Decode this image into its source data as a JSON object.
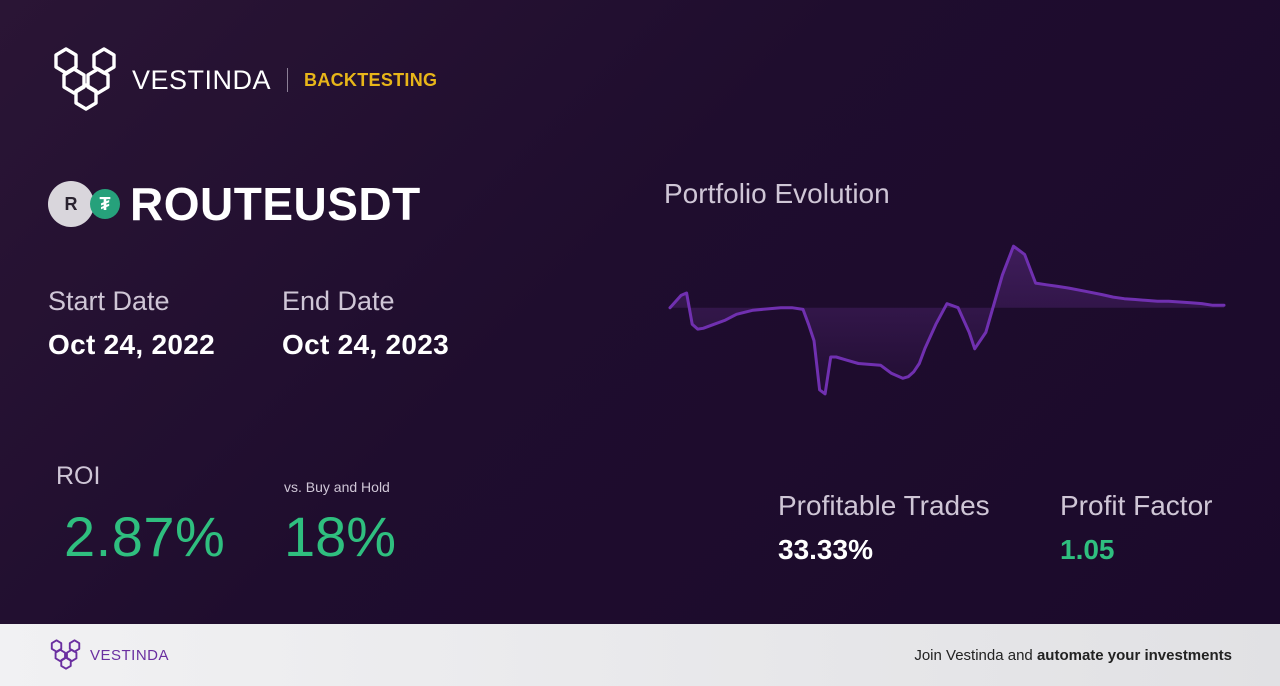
{
  "header": {
    "brand": "VESTINDA",
    "section": "BACKTESTING"
  },
  "pair": {
    "name": "ROUTEUSDT",
    "base_letter": "R",
    "quote_symbol": "₮"
  },
  "dates": {
    "start_label": "Start Date",
    "start_value": "Oct 24, 2022",
    "end_label": "End Date",
    "end_value": "Oct 24, 2023"
  },
  "roi": {
    "label": "ROI",
    "value": "2.87%",
    "bh_label": "vs. Buy and Hold",
    "bh_value": "18%"
  },
  "chart": {
    "title": "Portfolio Evolution"
  },
  "chart_data": {
    "type": "line",
    "baseline": 0,
    "x": [
      0,
      2,
      3,
      4,
      5,
      6,
      8,
      10,
      12,
      15,
      20,
      22,
      24,
      25,
      26,
      27,
      28,
      29,
      30,
      32,
      34,
      36,
      38,
      40,
      42,
      43,
      44,
      45,
      46,
      48,
      50,
      52,
      54,
      55,
      57,
      60,
      62,
      64,
      66,
      68,
      70,
      72,
      75,
      78,
      80,
      82,
      84,
      86,
      88,
      90,
      92,
      94,
      96,
      98,
      100
    ],
    "y": [
      0,
      1.5,
      1.8,
      -2,
      -2.6,
      -2.5,
      -2,
      -1.5,
      -0.8,
      -0.3,
      0,
      0,
      -0.2,
      -2,
      -4,
      -10,
      -10.5,
      -6,
      -6,
      -6.4,
      -6.8,
      -6.9,
      -7,
      -8,
      -8.6,
      -8.4,
      -7.8,
      -6.8,
      -5,
      -2,
      0.5,
      0,
      -3,
      -5,
      -3,
      4,
      7.5,
      6.5,
      3,
      2.8,
      2.6,
      2.4,
      2,
      1.6,
      1.3,
      1.1,
      1,
      0.9,
      0.8,
      0.8,
      0.7,
      0.6,
      0.5,
      0.3,
      0.3
    ],
    "colors": {
      "line": "#7030b0",
      "fill": "#5a2a80"
    }
  },
  "stats": {
    "profitable_label": "Profitable Trades",
    "profitable_value": "33.33%",
    "factor_label": "Profit Factor",
    "factor_value": "1.05"
  },
  "footer": {
    "brand": "VESTINDA",
    "cta_prefix": "Join Vestinda and ",
    "cta_bold": "automate your investments"
  },
  "colors": {
    "accent_green": "#2fbf7f",
    "accent_gold": "#e8b619",
    "brand_purple": "#6a2fa0"
  }
}
